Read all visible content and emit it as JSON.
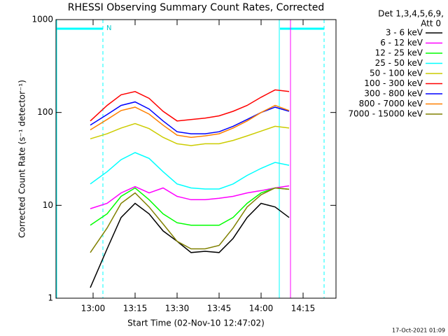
{
  "chart_data": {
    "type": "line",
    "title": "RHESSI Observing Summary Count Rates, Corrected",
    "xlabel": "Start Time (02-Nov-10 12:47:02)",
    "ylabel": "Corrected Count Rate (s⁻¹ detector⁻¹)",
    "legend_header": [
      "Det 1,3,4,5,6,9,",
      "Att 0"
    ],
    "annotation": "N",
    "footer": "17-Oct-2021 01:09",
    "log_y": true,
    "legend": "outside-right",
    "xlim": [
      "12:46:45",
      "14:26:45"
    ],
    "xticks": [
      "13:00",
      "13:15",
      "13:30",
      "13:45",
      "14:00",
      "14:15"
    ],
    "ylim": [
      1,
      1000
    ],
    "yticks": [
      1,
      10,
      100,
      1000
    ],
    "x": [
      "12:59",
      "13:05",
      "13:10",
      "13:15",
      "13:20",
      "13:25",
      "13:30",
      "13:35",
      "13:40",
      "13:45",
      "13:50",
      "13:55",
      "14:00",
      "14:05",
      "14:10"
    ],
    "series": [
      {
        "name": "3 - 6 keV",
        "color": "#000000",
        "values": [
          1.3,
          3.4,
          7.4,
          10.5,
          8.1,
          5.3,
          4.1,
          3.1,
          3.2,
          3.1,
          4.4,
          7.4,
          10.5,
          9.6,
          7.4
        ]
      },
      {
        "name": "6 - 12 keV",
        "color": "#ff00ff",
        "values": [
          9.2,
          10.5,
          13.6,
          15.9,
          13.6,
          15.4,
          12.5,
          11.5,
          11.5,
          11.9,
          12.5,
          13.6,
          14.4,
          15.4,
          16.2
        ]
      },
      {
        "name": "12 - 25 keV",
        "color": "#00ff00",
        "values": [
          6.1,
          8.1,
          12.5,
          15.4,
          11.5,
          8.1,
          6.5,
          6.1,
          6.1,
          6.1,
          7.4,
          10.5,
          13.6,
          15.4,
          14.9
        ]
      },
      {
        "name": "25 - 50 keV",
        "color": "#00ffff",
        "values": [
          17,
          23,
          31,
          37,
          32,
          23,
          17,
          15.4,
          15,
          15,
          17,
          21,
          25,
          29,
          27
        ]
      },
      {
        "name": "50 - 100 keV",
        "color": "#cccc00",
        "values": [
          52,
          59,
          68,
          76,
          67,
          54,
          46,
          44,
          46,
          46,
          50,
          56,
          63,
          71,
          68
        ]
      },
      {
        "name": "100 - 300 keV",
        "color": "#ff0000",
        "values": [
          81,
          119,
          155,
          168,
          142,
          103,
          81,
          84,
          87,
          92,
          103,
          119,
          146,
          175,
          168
        ]
      },
      {
        "name": "300 - 800 keV",
        "color": "#0000ff",
        "values": [
          73,
          95,
          119,
          130,
          109,
          81,
          62,
          59,
          59,
          62,
          71,
          84,
          100,
          114,
          103
        ]
      },
      {
        "name": "800 - 7000 keV",
        "color": "#ff8000",
        "values": [
          65,
          84,
          105,
          114,
          96,
          73,
          57,
          54,
          56,
          59,
          68,
          81,
          100,
          119,
          105
        ]
      },
      {
        "name": "7000 - 15000 keV",
        "color": "#808000",
        "values": [
          3.1,
          5.7,
          10.5,
          13.6,
          9.6,
          6.3,
          4.1,
          3.4,
          3.4,
          3.7,
          5.7,
          9.6,
          13.0,
          15.4,
          14.9
        ]
      }
    ]
  }
}
